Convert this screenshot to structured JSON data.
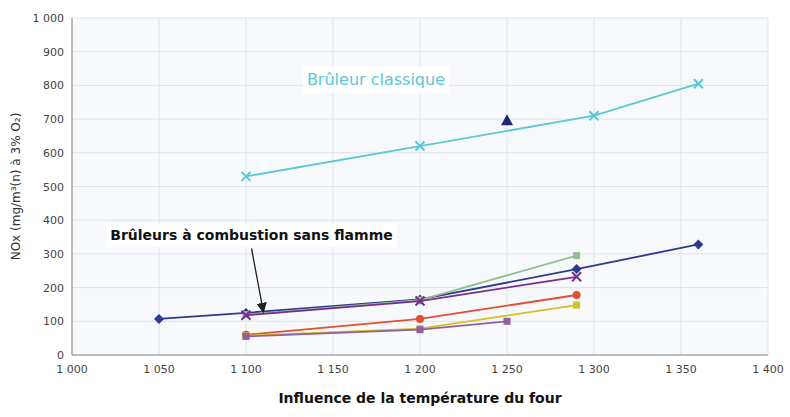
{
  "chart_data": {
    "type": "line",
    "xlabel": "Influence de la température du four",
    "ylabel": "NOx (mg/m³(n) à 3% O₂)",
    "xlim": [
      1000,
      1400
    ],
    "ylim": [
      0,
      1000
    ],
    "xticks": [
      {
        "value": 1000,
        "label": "1 000"
      },
      {
        "value": 1050,
        "label": "1 050"
      },
      {
        "value": 1100,
        "label": "1 100"
      },
      {
        "value": 1150,
        "label": "1 150"
      },
      {
        "value": 1200,
        "label": "1 200"
      },
      {
        "value": 1250,
        "label": "1 250"
      },
      {
        "value": 1300,
        "label": "1 300"
      },
      {
        "value": 1350,
        "label": "1 350"
      },
      {
        "value": 1400,
        "label": "1 400"
      }
    ],
    "yticks": [
      0,
      100,
      200,
      300,
      400,
      500,
      600,
      700,
      800,
      900,
      {
        "value": 1000,
        "label": "1 000"
      }
    ],
    "grid": true,
    "series": [
      {
        "type": "line",
        "color": "#5bc8d4",
        "marker": "x",
        "x": [
          1100,
          1200,
          1300,
          1360
        ],
        "values": [
          530,
          620,
          710,
          805
        ]
      },
      {
        "type": "scatter",
        "color": "#1a2a6e",
        "marker": "triangle",
        "x": [
          1250
        ],
        "values": [
          695
        ]
      },
      {
        "type": "line",
        "color": "#2d3b8e",
        "marker": "diamond",
        "x": [
          1050,
          1100,
          1200,
          1290,
          1360
        ],
        "values": [
          107,
          125,
          165,
          255,
          328
        ]
      },
      {
        "type": "line",
        "color": "#90c090",
        "marker": "square",
        "x": [
          1100,
          1200,
          1290
        ],
        "values": [
          120,
          163,
          295
        ]
      },
      {
        "type": "line",
        "color": "#7b2d8b",
        "marker": "x",
        "x": [
          1100,
          1200,
          1290
        ],
        "values": [
          118,
          160,
          232
        ]
      },
      {
        "type": "line",
        "color": "#e05030",
        "marker": "circle",
        "x": [
          1100,
          1200,
          1290
        ],
        "values": [
          60,
          107,
          178
        ]
      },
      {
        "type": "line",
        "color": "#d4c020",
        "marker": "square",
        "x": [
          1100,
          1200,
          1290
        ],
        "values": [
          57,
          78,
          148
        ]
      },
      {
        "type": "line",
        "color": "#9060a0",
        "marker": "square",
        "x": [
          1100,
          1200,
          1250
        ],
        "values": [
          55,
          75,
          100
        ]
      }
    ],
    "annotations": [
      {
        "text": "Brûleur classique",
        "x": 1135,
        "y": 800,
        "color": "#5bc8d4"
      },
      {
        "text": "Brûleurs à combustion sans flamme",
        "x": 1022,
        "y": 340,
        "color": "#111111",
        "target_x": 1110,
        "target_y": 127
      }
    ]
  }
}
